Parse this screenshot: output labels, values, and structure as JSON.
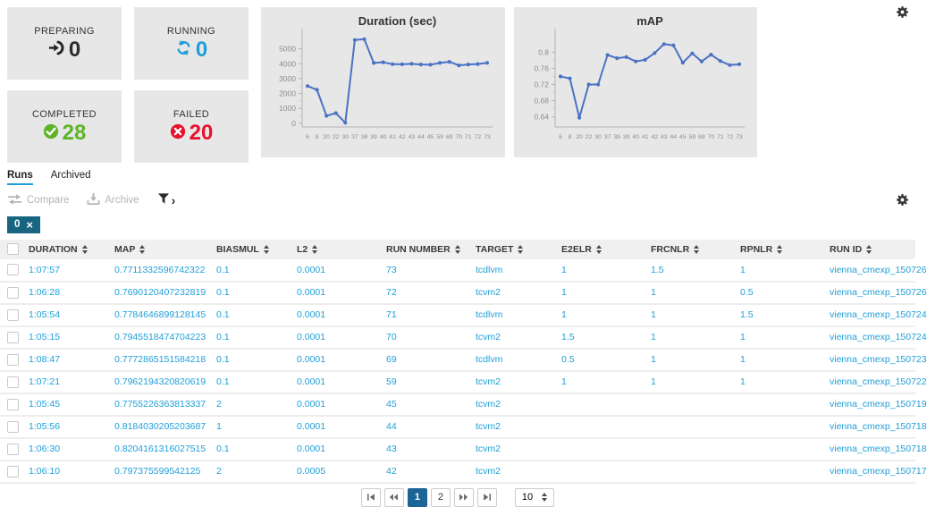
{
  "icons": {
    "top_right": "gear-icon",
    "table_settings": "gear-icon",
    "preparing": "enter-arrow-icon",
    "running": "refresh-icon",
    "completed": "check-circle-icon",
    "failed": "x-circle-icon",
    "compare": "swap-arrows-icon",
    "archive": "download-tray-icon",
    "filter": "funnel-icon"
  },
  "colors": {
    "accent_blue": "#1d9fd9",
    "green": "#5cb426",
    "red": "#e8112d",
    "badge_teal": "#176581",
    "chart_line": "#4a72c4",
    "pager_active": "#1a6496"
  },
  "status_cards": [
    {
      "label": "PREPARING",
      "count": "0",
      "color": "#2b2b2b"
    },
    {
      "label": "RUNNING",
      "count": "0",
      "color": "#1d9fd9"
    },
    {
      "label": "COMPLETED",
      "count": "28",
      "color": "#5cb426"
    },
    {
      "label": "FAILED",
      "count": "20",
      "color": "#e8112d"
    }
  ],
  "chart_data": [
    {
      "type": "line",
      "title": "Duration (sec)",
      "x": [
        "6",
        "8",
        "20",
        "22",
        "30",
        "37",
        "38",
        "39",
        "40",
        "41",
        "42",
        "43",
        "44",
        "45",
        "59",
        "69",
        "70",
        "71",
        "72",
        "73"
      ],
      "values": [
        2500,
        2250,
        500,
        680,
        30,
        5600,
        5650,
        4050,
        4100,
        3970,
        3960,
        3990,
        3950,
        3930,
        4050,
        4130,
        3890,
        3950,
        3980,
        4060
      ],
      "yticks": [
        0,
        1000,
        2000,
        3000,
        4000,
        5000
      ],
      "ylim": [
        -250,
        6000
      ],
      "xlabel": "",
      "ylabel": "",
      "grid": false,
      "legend": "none",
      "line_color": "#4a72c4"
    },
    {
      "type": "line",
      "title": "mAP",
      "x": [
        "6",
        "8",
        "20",
        "22",
        "30",
        "37",
        "38",
        "39",
        "40",
        "41",
        "42",
        "43",
        "44",
        "45",
        "59",
        "69",
        "70",
        "71",
        "72",
        "73"
      ],
      "values": [
        0.74,
        0.735,
        0.638,
        0.72,
        0.72,
        0.793,
        0.785,
        0.788,
        0.777,
        0.781,
        0.798,
        0.82,
        0.817,
        0.774,
        0.797,
        0.777,
        0.794,
        0.778,
        0.768,
        0.77
      ],
      "yticks": [
        0.64,
        0.68,
        0.72,
        0.76,
        0.8
      ],
      "ylim": [
        0.615,
        0.845
      ],
      "xlabel": "",
      "ylabel": "",
      "grid": false,
      "legend": "none",
      "line_color": "#4a72c4"
    }
  ],
  "tabs": {
    "runs": "Runs",
    "archived": "Archived"
  },
  "toolbar": {
    "compare": "Compare",
    "archive": "Archive",
    "filter_expand": "›"
  },
  "selection": {
    "count": "0",
    "close": "×"
  },
  "table": {
    "columns": [
      "DURATION",
      "MAP",
      "BIASMUL",
      "L2",
      "RUN NUMBER",
      "TARGET",
      "E2ELR",
      "FRCNLR",
      "RPNLR",
      "RUN ID"
    ],
    "rows": [
      [
        "1:07:57",
        "0.7711332596742322",
        "0.1",
        "0.0001",
        "73",
        "tcdlvm",
        "1",
        "1.5",
        "1",
        "vienna_cmexp_150726"
      ],
      [
        "1:06:28",
        "0.7690120407232819",
        "0.1",
        "0.0001",
        "72",
        "tcvm2",
        "1",
        "1",
        "0.5",
        "vienna_cmexp_150726"
      ],
      [
        "1:05:54",
        "0.7784646899128145",
        "0.1",
        "0.0001",
        "71",
        "tcdlvm",
        "1",
        "1",
        "1.5",
        "vienna_cmexp_150724"
      ],
      [
        "1:05:15",
        "0.7945518474704223",
        "0.1",
        "0.0001",
        "70",
        "tcvm2",
        "1.5",
        "1",
        "1",
        "vienna_cmexp_150724"
      ],
      [
        "1:08:47",
        "0.7772865151584218",
        "0.1",
        "0.0001",
        "69",
        "tcdlvm",
        "0.5",
        "1",
        "1",
        "vienna_cmexp_150723"
      ],
      [
        "1:07:21",
        "0.7962194320820619",
        "0.1",
        "0.0001",
        "59",
        "tcvm2",
        "1",
        "1",
        "1",
        "vienna_cmexp_150722"
      ],
      [
        "1:05:45",
        "0.7755226363813337",
        "2",
        "0.0001",
        "45",
        "tcvm2",
        "",
        "",
        "",
        "vienna_cmexp_150719"
      ],
      [
        "1:05:56",
        "0.8184030205203687",
        "1",
        "0.0001",
        "44",
        "tcvm2",
        "",
        "",
        "",
        "vienna_cmexp_150718"
      ],
      [
        "1:06:30",
        "0.8204161316027515",
        "0.1",
        "0.0001",
        "43",
        "tcvm2",
        "",
        "",
        "",
        "vienna_cmexp_150718"
      ],
      [
        "1:06:10",
        "0.797375599542125",
        "2",
        "0.0005",
        "42",
        "tcvm2",
        "",
        "",
        "",
        "vienna_cmexp_150717"
      ]
    ]
  },
  "pagination": {
    "pages": [
      "1",
      "2"
    ],
    "active_page": "1",
    "page_size": "10"
  }
}
